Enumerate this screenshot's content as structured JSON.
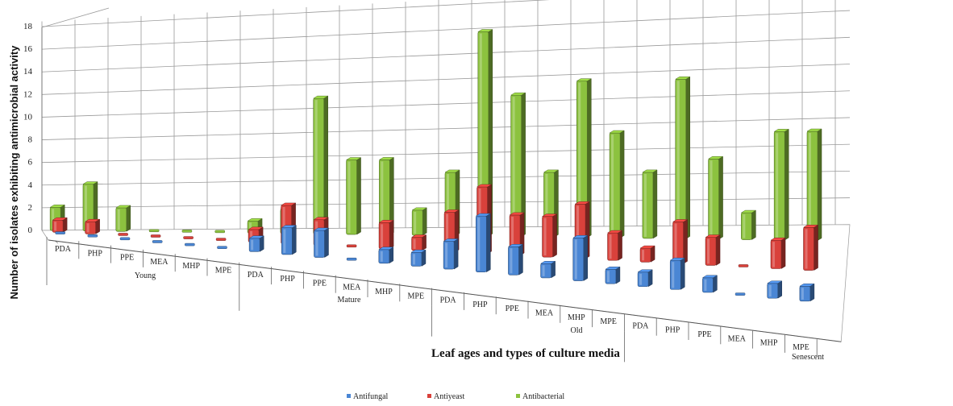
{
  "chart_data": {
    "type": "bar",
    "title": "",
    "ylabel": "Number of isolates exhibiting antimicrobial activity",
    "xlabel": "Leaf ages and types of culture media",
    "ylim": [
      0,
      18
    ],
    "yticks": [
      0,
      2,
      4,
      6,
      8,
      10,
      12,
      14,
      16,
      18
    ],
    "grid": true,
    "legend_position": "bottom",
    "groups": [
      {
        "name": "Young",
        "categories": [
          "PDA",
          "PHP",
          "PPE",
          "MEA",
          "MHP",
          "MPE"
        ]
      },
      {
        "name": "Mature",
        "categories": [
          "PDA",
          "PHP",
          "PPE",
          "MEA",
          "MHP",
          "MPE"
        ]
      },
      {
        "name": "Old",
        "categories": [
          "PDA",
          "PHP",
          "PPE",
          "MEA",
          "MHP",
          "MPE"
        ]
      },
      {
        "name": "Senescent",
        "categories": [
          "PDA",
          "PHP",
          "PPE",
          "MEA",
          "MHP",
          "MPE"
        ]
      }
    ],
    "series": [
      {
        "name": "Antifungal",
        "color": "#4a86d4",
        "values": [
          0,
          0,
          0,
          0,
          0,
          0,
          1,
          2,
          2,
          0,
          1,
          1,
          2,
          4,
          2,
          1,
          3,
          1,
          1,
          2,
          1,
          0,
          1,
          1
        ]
      },
      {
        "name": "Antiyeast",
        "color": "#d9413b",
        "values": [
          1,
          1,
          0,
          0,
          0,
          0,
          1,
          3,
          2,
          0,
          2,
          1,
          3,
          5,
          3,
          3,
          4,
          2,
          1,
          3,
          2,
          0,
          2,
          3
        ]
      },
      {
        "name": "Antibacterial",
        "color": "#8cc23f",
        "values": [
          2,
          4,
          2,
          0,
          0,
          0,
          1,
          2,
          11,
          6,
          6,
          2,
          5,
          16,
          11,
          5,
          12,
          8,
          5,
          12,
          6,
          2,
          8,
          8
        ]
      }
    ]
  }
}
